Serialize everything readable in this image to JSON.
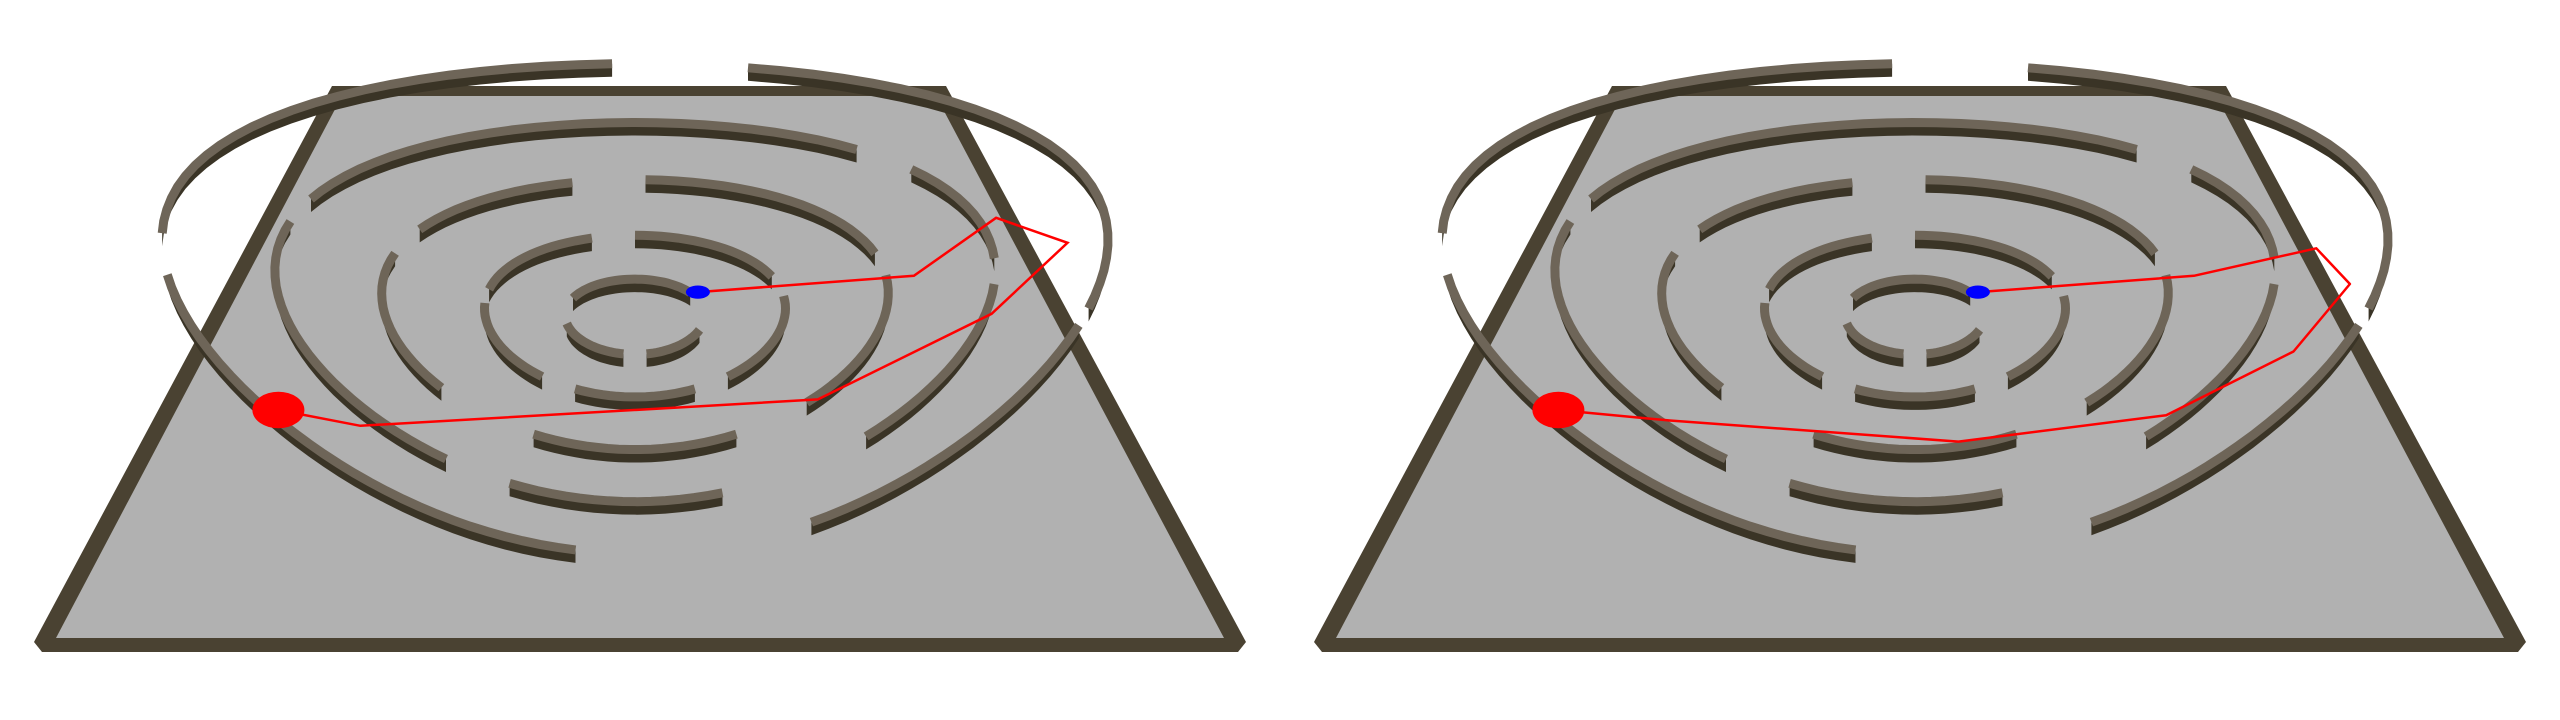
{
  "colors": {
    "background": "#ffffff",
    "floor": "#b1b1b1",
    "wall_top": "#6e6558",
    "wall_side": "#3a3426",
    "wall_shadow": "#2c2a18",
    "lit_wall": "#7a7664",
    "path": "#ff0000",
    "start_marker": "#ff0000",
    "goal_marker": "#0000ff"
  },
  "panels": [
    {
      "name": "left-maze-panel",
      "path_style": "angular",
      "path": [
        [
          0.12,
          -0.14
        ],
        [
          0.52,
          -0.2
        ],
        [
          0.62,
          -0.41
        ],
        [
          0.77,
          -0.32
        ],
        [
          0.7,
          -0.06
        ],
        [
          0.4,
          0.26
        ],
        [
          -0.62,
          0.36
        ],
        [
          -0.79,
          0.3
        ]
      ]
    },
    {
      "name": "right-maze-panel",
      "path_style": "smooth",
      "path": [
        [
          0.12,
          -0.14
        ],
        [
          0.52,
          -0.2
        ],
        [
          0.72,
          -0.3
        ],
        [
          0.82,
          -0.17
        ],
        [
          0.78,
          0.08
        ],
        [
          0.56,
          0.32
        ],
        [
          0.1,
          0.42
        ],
        [
          -0.55,
          0.34
        ],
        [
          -0.79,
          0.3
        ]
      ]
    }
  ]
}
